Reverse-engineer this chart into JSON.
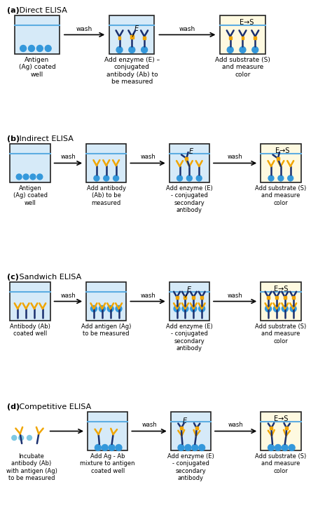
{
  "title_a": "(a) Direct ELISA",
  "title_b": "(b) Indirect ELISA",
  "title_c": "(c) Sandwich ELISA",
  "title_d": "(d) Competitive ELISA",
  "well_fill_blue": "#d6eaf8",
  "well_fill_yellow": "#fef9e0",
  "well_stroke": "#222222",
  "water_line_color": "#5dade2",
  "antigen_color": "#3498db",
  "antibody_stem_color": "#1a2f6e",
  "antibody_arm_color": "#1a2f6e",
  "enzyme_tag_color": "#f0a500",
  "secondary_color": "#1a2f6e",
  "label_fontsize": 6.5,
  "section_label_fontsize": 8,
  "bg_color": "#ffffff"
}
